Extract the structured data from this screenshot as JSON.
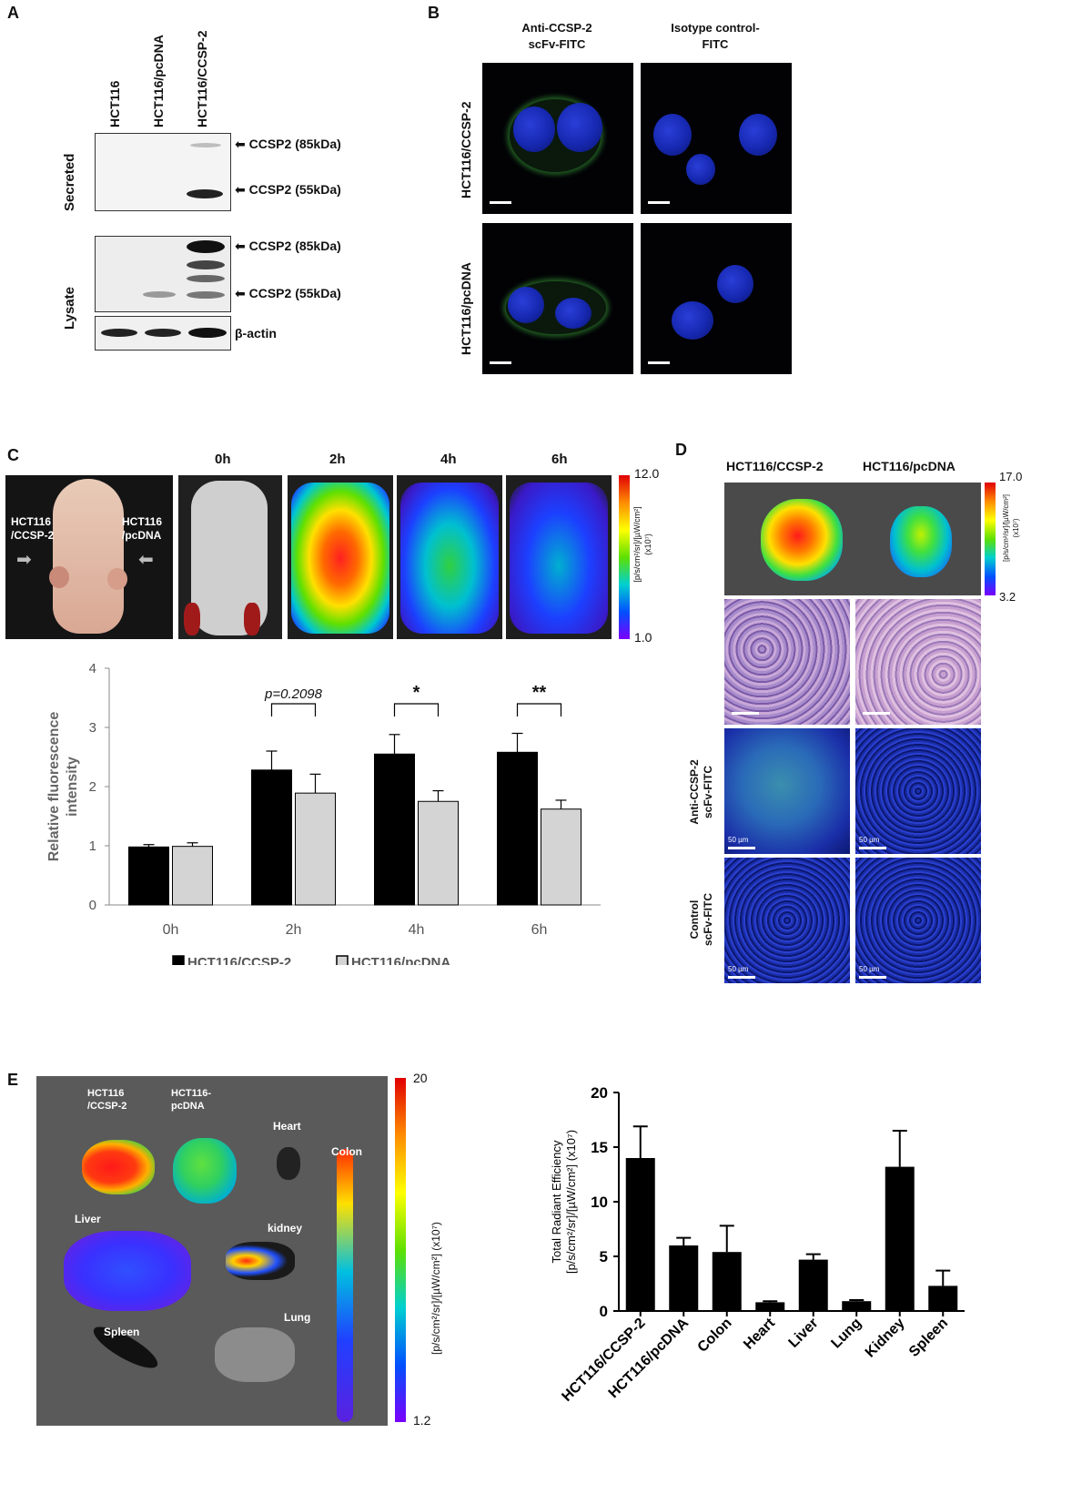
{
  "panel_letters": {
    "a": "A",
    "b": "B",
    "c": "C",
    "d": "D",
    "e": "E"
  },
  "panelA": {
    "lanes": [
      "HCT116",
      "HCT116/pcDNA",
      "HCT116/CCSP-2"
    ],
    "row_labels": {
      "secreted": "Secreted",
      "lysate": "Lysate"
    },
    "band_labels": {
      "sec85": "CCSP2 (85kDa)",
      "sec55": "CCSP2 (55kDa)",
      "lys85": "CCSP2 (85kDa)",
      "lys55": "CCSP2 (55kDa)",
      "actin": "β-actin"
    }
  },
  "panelB": {
    "col1": "Anti-CCSP-2\nscFv-FITC",
    "col2": "Isotype control-\nFITC",
    "row1": "HCT116/CCSP-2",
    "row2": "HCT116/pcDNA"
  },
  "panelC": {
    "mouse_left_label": "HCT116\n/CCSP-2",
    "mouse_right_label": "HCT116\n/pcDNA",
    "time_labels": [
      "0h",
      "2h",
      "4h",
      "6h"
    ],
    "colorbar": {
      "max": "12.0",
      "min": "1.0",
      "unit": "[p/s/cm²/sr]/[µW/cm²]\n(x10⁷)"
    }
  },
  "panelD": {
    "cols": [
      "HCT116/CCSP-2",
      "HCT116/pcDNA"
    ],
    "colorbar": {
      "max": "17.0",
      "min": "3.2",
      "unit": "[p/s/cm²/sr]/[µW/cm²]\n(x10⁷)"
    },
    "row_labels": [
      "Anti-CCSP-2\nscFv-FITC",
      "Control\nscFv-FITC"
    ],
    "scale_text": "50 µm"
  },
  "panelE": {
    "organ_labels": {
      "ccsp": "HCT116\n/CCSP-2",
      "pcdna": "HCT116-\npcDNA",
      "heart": "Heart",
      "colon": "Colon",
      "liver": "Liver",
      "kidney": "kidney",
      "spleen": "Spleen",
      "lung": "Lung"
    },
    "colorbar": {
      "max": "20",
      "min": "1.2",
      "unit": "[p/s/cm²/sr]/[µW/cm²] (x10⁷)"
    }
  },
  "chart_data": [
    {
      "type": "bar",
      "categories": [
        "0h",
        "2h",
        "4h",
        "6h"
      ],
      "series": [
        {
          "name": "HCT116/CCSP-2",
          "values": [
            0.98,
            2.28,
            2.55,
            2.58
          ],
          "errors": [
            0.04,
            0.32,
            0.33,
            0.32
          ],
          "color": "#000000"
        },
        {
          "name": "HCT116/pcDNA",
          "values": [
            0.99,
            1.89,
            1.75,
            1.62
          ],
          "errors": [
            0.06,
            0.32,
            0.18,
            0.15
          ],
          "color": "#d4d4d4"
        }
      ],
      "ylabel": "Relative fluorescence\nintensity",
      "ylim": [
        0,
        4
      ],
      "yticks": [
        0,
        1,
        2,
        3,
        4
      ],
      "significance": [
        {
          "category": "2h",
          "label": "p=0.2098"
        },
        {
          "category": "4h",
          "label": "*"
        },
        {
          "category": "6h",
          "label": "**"
        }
      ],
      "legend": "bottom"
    },
    {
      "type": "bar",
      "categories": [
        "HCT116/CCSP-2",
        "HCT116/pcDNA",
        "Colon",
        "Heart",
        "Liver",
        "Lung",
        "Kidney",
        "Spleen"
      ],
      "values": [
        14.0,
        6.0,
        5.4,
        0.8,
        4.7,
        0.9,
        13.2,
        2.3
      ],
      "errors": [
        2.9,
        0.7,
        2.4,
        0.1,
        0.5,
        0.1,
        3.3,
        1.4
      ],
      "ylabel": "Total Radiant Efficiency\n[p/s/cm²/sr]/[µW/cm²] (x10⁷)",
      "ylim": [
        0,
        20
      ],
      "yticks": [
        0,
        5,
        10,
        15,
        20
      ]
    }
  ]
}
